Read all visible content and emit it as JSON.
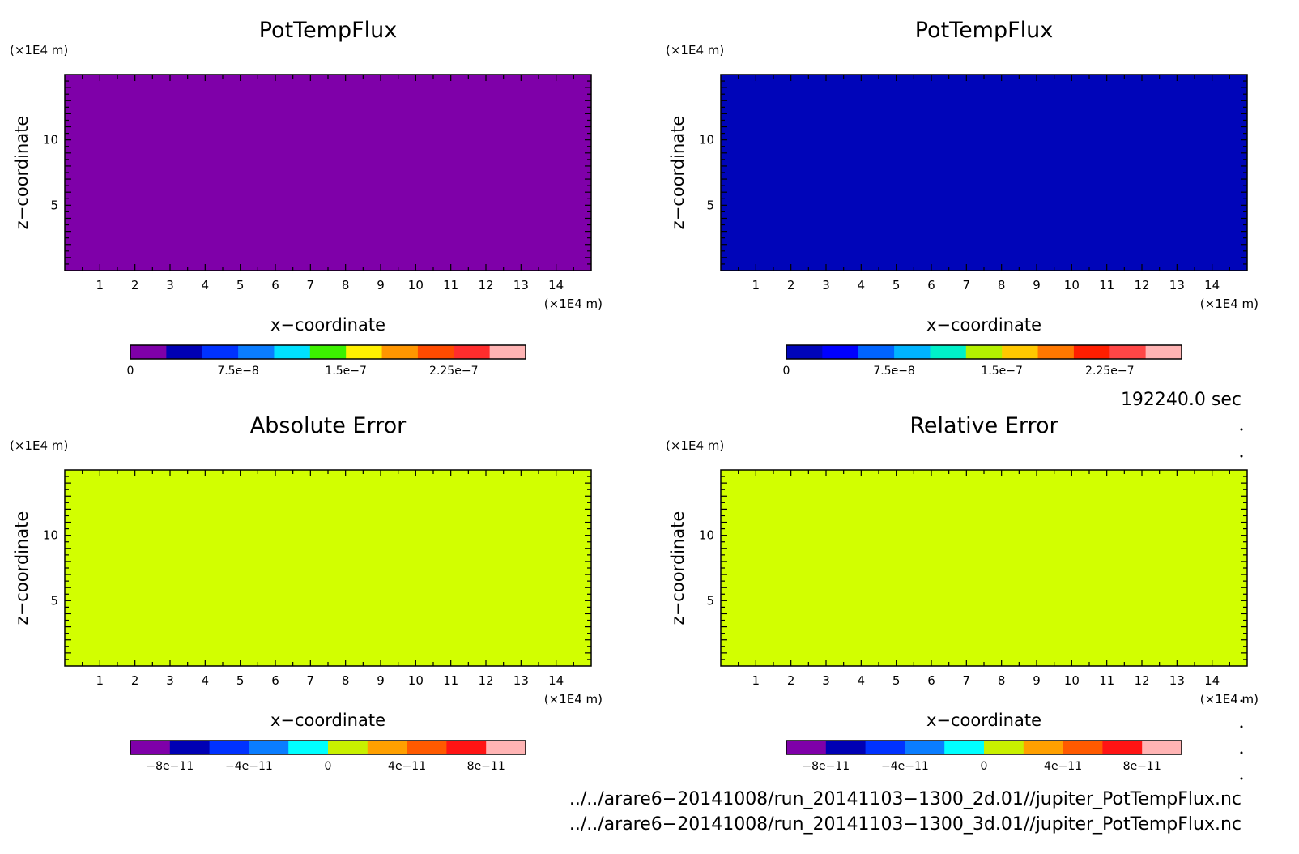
{
  "chart_data": [
    {
      "type": "heatmap",
      "title": "PotTempFlux",
      "xlabel": "x−coordinate",
      "ylabel": "z−coordinate",
      "x_unit": "(×1E4 m)",
      "y_unit": "(×1E4 m)",
      "xlim": [
        0,
        15
      ],
      "ylim": [
        0,
        15
      ],
      "x_ticks": [
        "1",
        "2",
        "3",
        "4",
        "5",
        "6",
        "7",
        "8",
        "9",
        "10",
        "11",
        "12",
        "13",
        "14"
      ],
      "y_ticks": [
        "5",
        "10"
      ],
      "fill_color": "#7f00a9",
      "colorbar": {
        "colors": [
          "#7f00a9",
          "#0000b4",
          "#0032ff",
          "#0a7dff",
          "#00e1ff",
          "#3cf000",
          "#fff000",
          "#ff9600",
          "#ff4b00",
          "#ff2d2d",
          "#ffb4b4"
        ],
        "tick_labels": [
          "0",
          "7.5e−8",
          "1.5e−7",
          "2.25e−7"
        ]
      }
    },
    {
      "type": "heatmap",
      "title": "PotTempFlux",
      "xlabel": "x−coordinate",
      "ylabel": "z−coordinate",
      "x_unit": "(×1E4 m)",
      "y_unit": "(×1E4 m)",
      "xlim": [
        0,
        15
      ],
      "ylim": [
        0,
        15
      ],
      "x_ticks": [
        "1",
        "2",
        "3",
        "4",
        "5",
        "6",
        "7",
        "8",
        "9",
        "10",
        "11",
        "12",
        "13",
        "14"
      ],
      "y_ticks": [
        "5",
        "10"
      ],
      "fill_color": "#0005b9",
      "colorbar": {
        "colors": [
          "#0005b9",
          "#0000ff",
          "#0064ff",
          "#00b4ff",
          "#00f0c8",
          "#b4f000",
          "#ffc800",
          "#ff7800",
          "#ff1e00",
          "#ff4646",
          "#ffb4b4"
        ],
        "tick_labels": [
          "0",
          "7.5e−8",
          "1.5e−7",
          "2.25e−7"
        ]
      }
    },
    {
      "type": "heatmap",
      "title": "Absolute Error",
      "xlabel": "x−coordinate",
      "ylabel": "z−coordinate",
      "x_unit": "(×1E4 m)",
      "y_unit": "(×1E4 m)",
      "xlim": [
        0,
        15
      ],
      "ylim": [
        0,
        15
      ],
      "x_ticks": [
        "1",
        "2",
        "3",
        "4",
        "5",
        "6",
        "7",
        "8",
        "9",
        "10",
        "11",
        "12",
        "13",
        "14"
      ],
      "y_ticks": [
        "5",
        "10"
      ],
      "fill_color": "#d2ff00",
      "colorbar": {
        "colors": [
          "#7f00a9",
          "#0000b4",
          "#0032ff",
          "#0a7dff",
          "#00ffff",
          "#c8f000",
          "#ffa000",
          "#ff5a00",
          "#ff1414",
          "#ffb4b4"
        ],
        "tick_labels": [
          "−8e−11",
          "−4e−11",
          "0",
          "4e−11",
          "8e−11"
        ]
      }
    },
    {
      "type": "heatmap",
      "title": "Relative Error",
      "xlabel": "x−coordinate",
      "ylabel": "z−coordinate",
      "x_unit": "(×1E4 m)",
      "y_unit": "(×1E4 m)",
      "xlim": [
        0,
        15
      ],
      "ylim": [
        0,
        15
      ],
      "x_ticks": [
        "1",
        "2",
        "3",
        "4",
        "5",
        "6",
        "7",
        "8",
        "9",
        "10",
        "11",
        "12",
        "13",
        "14"
      ],
      "y_ticks": [
        "5",
        "10"
      ],
      "fill_color": "#d2ff00",
      "colorbar": {
        "colors": [
          "#7f00a9",
          "#0000b4",
          "#0032ff",
          "#0a7dff",
          "#00ffff",
          "#c8f000",
          "#ffa000",
          "#ff5a00",
          "#ff1414",
          "#ffb4b4"
        ],
        "tick_labels": [
          "−8e−11",
          "−4e−11",
          "0",
          "4e−11",
          "8e−11"
        ]
      }
    }
  ],
  "time_label": "192240.0 sec",
  "files": [
    "../../arare6−20141008/run_20141103−1300_2d.01//jupiter_PotTempFlux.nc",
    "../../arare6−20141008/run_20141103−1300_3d.01//jupiter_PotTempFlux.nc"
  ]
}
